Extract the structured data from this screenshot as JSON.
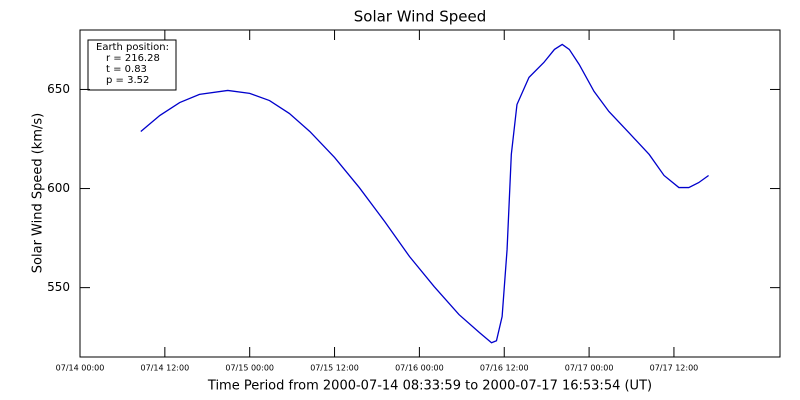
{
  "chart_data": {
    "type": "line",
    "title": "Solar Wind Speed",
    "ylabel": "Solar Wind Speed (km/s)",
    "xlabel": "Time Period from 2000-07-14 08:33:59 to 2000-07-17 16:53:54 (UT)",
    "annotation": [
      "Earth position:",
      "r = 216.28",
      "t = 0.83",
      "p = 3.52"
    ],
    "xlim": [
      0,
      99
    ],
    "xticks": [
      {
        "value": 0,
        "label": "07/14 00:00"
      },
      {
        "value": 12,
        "label": "07/14 12:00"
      },
      {
        "value": 24,
        "label": "07/15 00:00"
      },
      {
        "value": 36,
        "label": "07/15 12:00"
      },
      {
        "value": 48,
        "label": "07/16 00:00"
      },
      {
        "value": 60,
        "label": "07/16 12:00"
      },
      {
        "value": 72,
        "label": "07/17 00:00"
      },
      {
        "value": 84,
        "label": "07/17 12:00"
      }
    ],
    "ylim": [
      515,
      680
    ],
    "yticks": [
      550,
      600,
      650
    ],
    "series": [
      {
        "color": "#0000cc",
        "x": [
          8.6,
          11.3,
          14.1,
          16.9,
          20.9,
          24.0,
          26.8,
          29.6,
          32.5,
          36.0,
          39.5,
          43.1,
          46.6,
          50.1,
          53.6,
          56.5,
          58.2,
          58.9,
          59.7,
          60.4,
          61.0,
          61.8,
          63.5,
          65.6,
          67.1,
          68.2,
          69.2,
          70.6,
          72.7,
          74.8,
          77.6,
          80.5,
          82.6,
          84.7,
          86.1,
          87.5,
          88.9
        ],
        "values": [
          628.8,
          636.9,
          643.4,
          647.5,
          649.5,
          648,
          644.4,
          637.9,
          628.8,
          615.7,
          600.5,
          583.3,
          565.7,
          550.5,
          536.4,
          527.3,
          522.2,
          523.2,
          535.4,
          569.2,
          617.2,
          642.4,
          656.1,
          663.6,
          670.2,
          672.7,
          670.2,
          662.6,
          649,
          638.9,
          628.3,
          617.2,
          606.6,
          600.5,
          600.5,
          603,
          606.6
        ]
      }
    ]
  }
}
